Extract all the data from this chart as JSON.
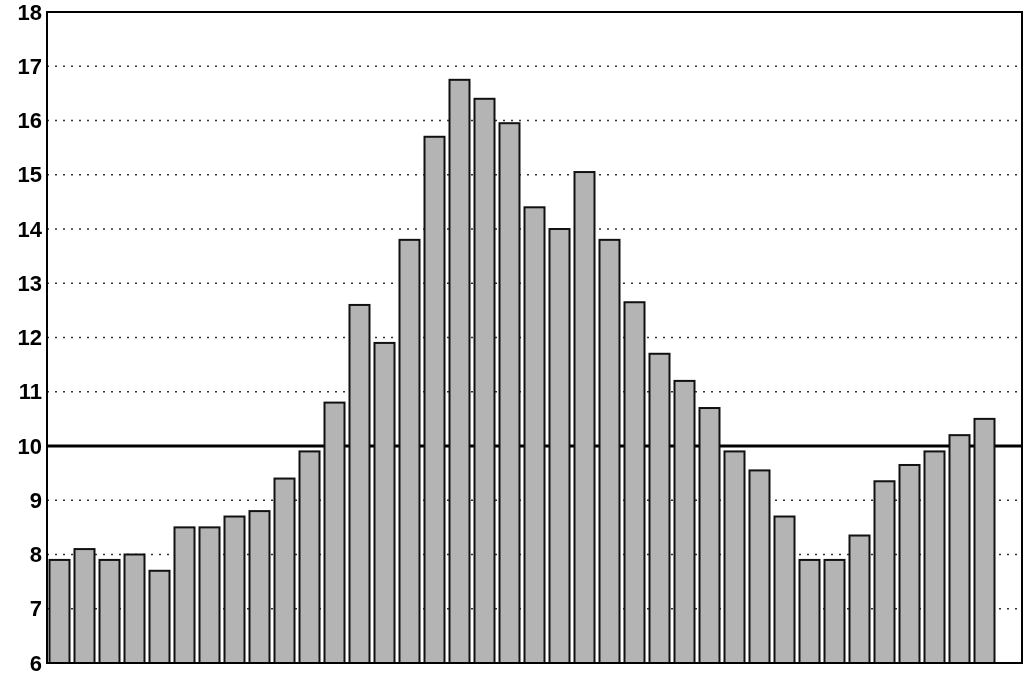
{
  "chart_data": {
    "type": "bar",
    "categories": [
      null,
      null,
      null,
      null,
      null,
      null,
      null,
      null,
      null,
      null,
      null,
      null,
      null,
      null,
      null,
      null,
      null,
      null,
      null,
      null,
      null,
      null,
      null,
      null,
      null,
      null,
      null,
      null,
      null,
      null,
      null,
      null,
      null,
      null,
      null,
      null,
      null,
      null,
      null
    ],
    "values": [
      7.9,
      8.1,
      7.9,
      8.0,
      7.7,
      8.5,
      8.5,
      8.7,
      8.8,
      9.4,
      9.9,
      10.8,
      12.6,
      11.9,
      13.8,
      15.7,
      16.75,
      16.4,
      15.95,
      14.4,
      14.0,
      15.05,
      13.8,
      12.65,
      11.7,
      11.2,
      10.7,
      9.9,
      9.55,
      8.7,
      7.9,
      7.9,
      8.35,
      9.35,
      9.65,
      9.9,
      10.2,
      10.5,
      null
    ],
    "color": "#b4b4b4",
    "ylim": [
      6,
      18
    ],
    "yticks": [
      6,
      7,
      8,
      9,
      10,
      11,
      12,
      13,
      14,
      15,
      16,
      17,
      18
    ],
    "grid": "y",
    "line_style": "dotted",
    "ref_lines": [
      {
        "axis": "y",
        "value": 10,
        "color": "#000000",
        "line_style": "solid"
      }
    ]
  }
}
